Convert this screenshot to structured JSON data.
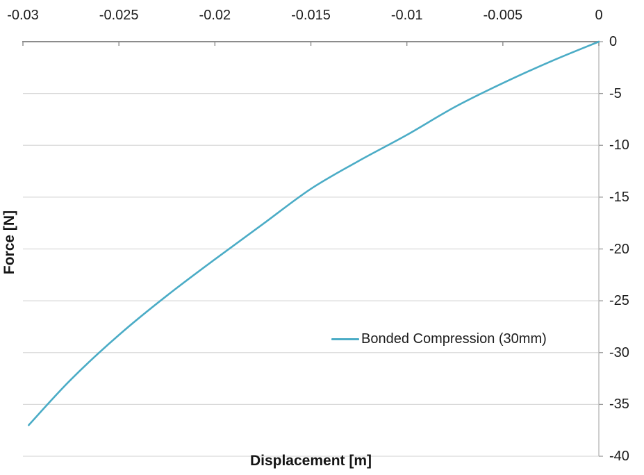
{
  "chart_data": {
    "type": "line",
    "title": "",
    "xlabel": "Displacement [m]",
    "ylabel": "Force [N]",
    "x_axis_position": "top",
    "y_axis_position": "right",
    "xlim": [
      -0.03,
      0
    ],
    "ylim": [
      -40,
      0
    ],
    "x_ticks": [
      -0.03,
      -0.025,
      -0.02,
      -0.015,
      -0.01,
      -0.005,
      0
    ],
    "x_tick_labels": [
      "-0.03",
      "-0.025",
      "-0.02",
      "-0.015",
      "-0.01",
      "-0.005",
      "0"
    ],
    "y_ticks": [
      0,
      -5,
      -10,
      -15,
      -20,
      -25,
      -30,
      -35,
      -40
    ],
    "y_tick_labels": [
      "0",
      "-5",
      "-10",
      "-15",
      "-20",
      "-25",
      "-30",
      "-35",
      "-40"
    ],
    "grid": "horizontal-only",
    "legend": {
      "position": "inside-lower-right",
      "entries": [
        {
          "label": "Bonded Compression (30mm)",
          "color": "#4BACC6"
        }
      ]
    },
    "series": [
      {
        "name": "Bonded Compression (30mm)",
        "color": "#4BACC6",
        "x": [
          0,
          -0.0025,
          -0.005,
          -0.0075,
          -0.01,
          -0.0125,
          -0.015,
          -0.0175,
          -0.02,
          -0.0225,
          -0.025,
          -0.0275,
          -0.0297
        ],
        "y": [
          0,
          -1.9,
          -4.0,
          -6.3,
          -9.0,
          -11.5,
          -14.2,
          -17.6,
          -21.0,
          -24.5,
          -28.3,
          -32.6,
          -37.0
        ]
      }
    ],
    "colors": {
      "gridline": "#D9D9D9",
      "top_axis_line": "#8C8C8C",
      "right_axis_line": "#BFBFBF",
      "tick_mark": "#9A9A9A",
      "tick_text": "#1C1C1C",
      "background": "#FFFFFF"
    }
  }
}
